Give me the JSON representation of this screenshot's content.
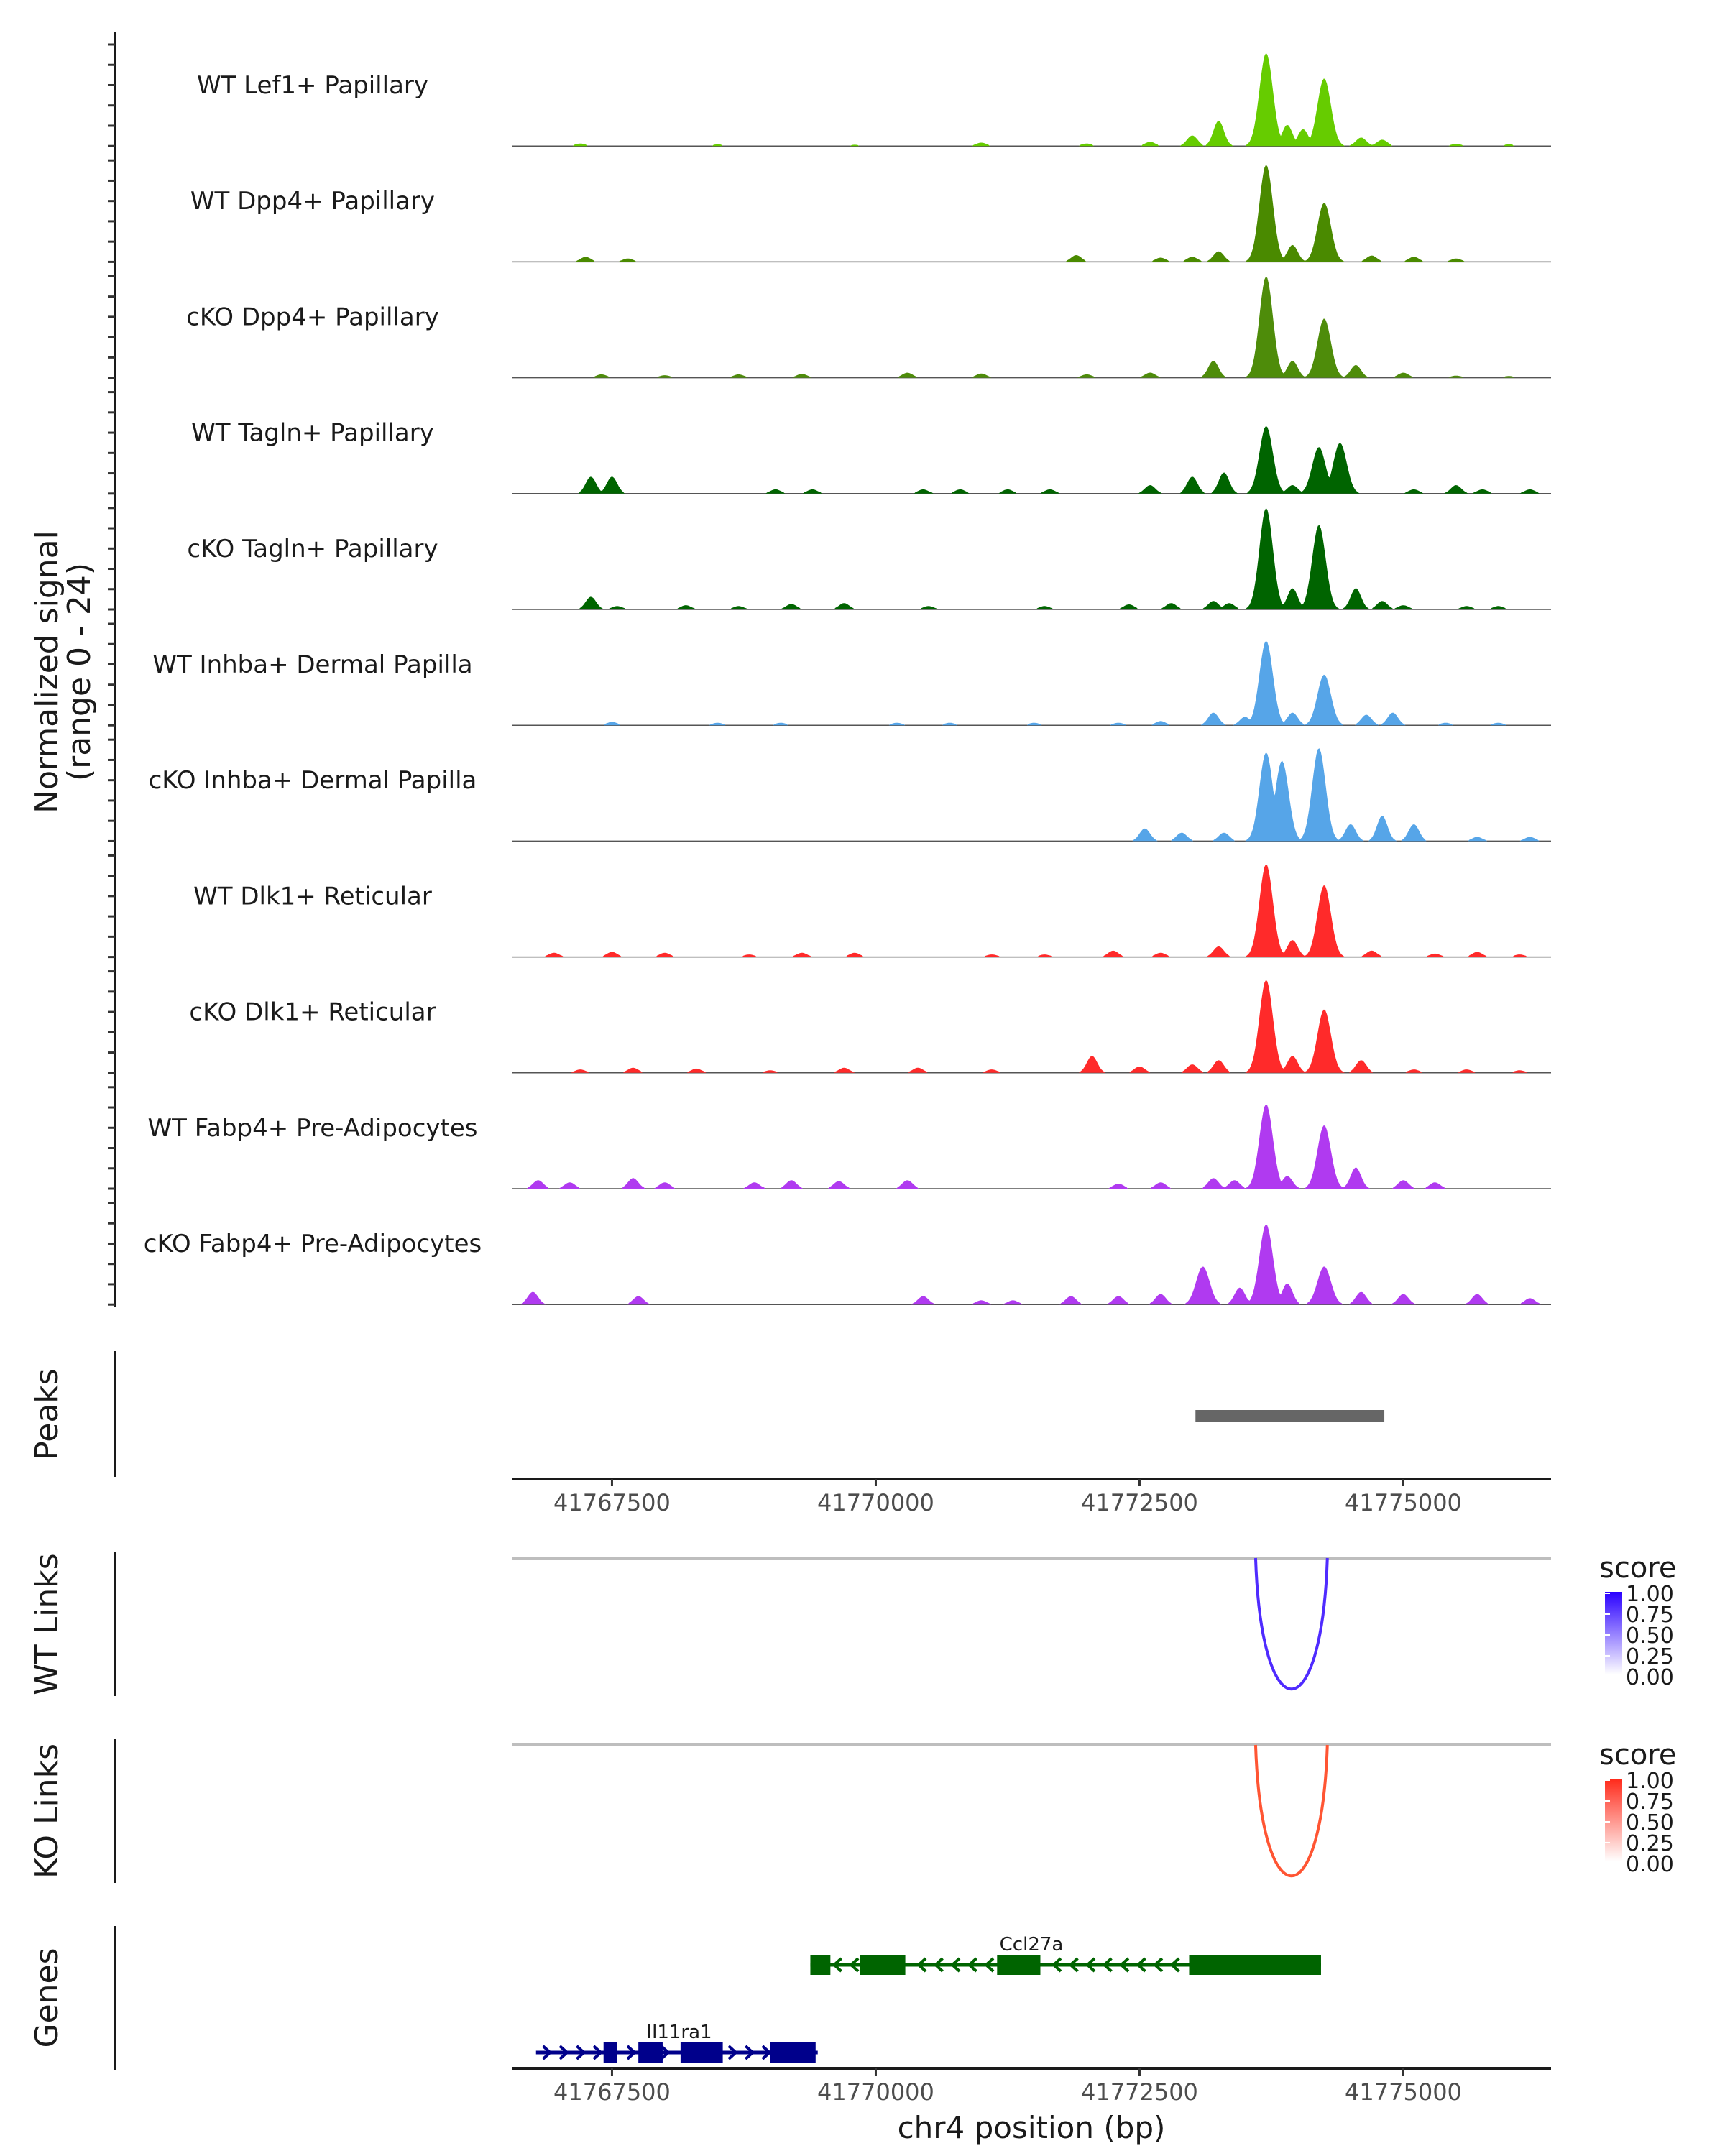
{
  "chart_data": {
    "type": "area",
    "title": "",
    "region": {
      "chrom": "chr4",
      "start": 41766550,
      "end": 41776400
    },
    "xlabel": "chr4 position (bp)",
    "xticks": [
      41767500,
      41770000,
      41772500,
      41775000
    ],
    "coverage": {
      "ylabel": "Normalized signal\n(range 0 - 24)",
      "ylabel_line1": "Normalized signal",
      "ylabel_line2": "(range 0 - 24)",
      "ylim": [
        0,
        24
      ],
      "tracks": [
        {
          "name": "WT Lef1+ Papillary",
          "color": "#66CC00",
          "peaks": [
            [
              41767200,
              0.6
            ],
            [
              41768500,
              0.4
            ],
            [
              41769800,
              0.3
            ],
            [
              41771000,
              0.8
            ],
            [
              41772000,
              0.6
            ],
            [
              41772600,
              1.0
            ],
            [
              41773000,
              2.5
            ],
            [
              41773250,
              6
            ],
            [
              41773700,
              22
            ],
            [
              41773900,
              5
            ],
            [
              41774050,
              4
            ],
            [
              41774250,
              16
            ],
            [
              41774600,
              2
            ],
            [
              41774800,
              1.5
            ],
            [
              41775500,
              0.5
            ],
            [
              41776000,
              0.4
            ]
          ]
        },
        {
          "name": "WT Dpp4+ Papillary",
          "color": "#4A8A00",
          "peaks": [
            [
              41767250,
              1.2
            ],
            [
              41767650,
              0.8
            ],
            [
              41771900,
              1.6
            ],
            [
              41772700,
              1.0
            ],
            [
              41773000,
              1.2
            ],
            [
              41773250,
              2.5
            ],
            [
              41773700,
              23
            ],
            [
              41773950,
              4
            ],
            [
              41774250,
              14
            ],
            [
              41774700,
              1.5
            ],
            [
              41775100,
              1.2
            ],
            [
              41775500,
              0.8
            ]
          ]
        },
        {
          "name": "cKO Dpp4+ Papillary",
          "color": "#4E8C0A",
          "peaks": [
            [
              41767400,
              0.8
            ],
            [
              41768000,
              0.6
            ],
            [
              41768700,
              0.8
            ],
            [
              41769300,
              0.9
            ],
            [
              41770300,
              1.2
            ],
            [
              41771000,
              1.0
            ],
            [
              41772000,
              0.8
            ],
            [
              41772600,
              1.2
            ],
            [
              41773200,
              4
            ],
            [
              41773700,
              24
            ],
            [
              41773950,
              4
            ],
            [
              41774250,
              14
            ],
            [
              41774550,
              3
            ],
            [
              41775000,
              1.2
            ],
            [
              41775500,
              0.5
            ],
            [
              41776000,
              0.4
            ]
          ]
        },
        {
          "name": "WT Tagln+ Papillary",
          "color": "#006400",
          "peaks": [
            [
              41767300,
              4
            ],
            [
              41767500,
              4
            ],
            [
              41769050,
              1
            ],
            [
              41769400,
              1
            ],
            [
              41770450,
              1
            ],
            [
              41770800,
              1
            ],
            [
              41771250,
              1
            ],
            [
              41771650,
              1
            ],
            [
              41772600,
              2
            ],
            [
              41773000,
              4
            ],
            [
              41773300,
              5
            ],
            [
              41773700,
              16
            ],
            [
              41773950,
              2
            ],
            [
              41774200,
              11
            ],
            [
              41774400,
              12
            ],
            [
              41775100,
              1
            ],
            [
              41775500,
              2
            ],
            [
              41775750,
              1
            ],
            [
              41776200,
              1
            ]
          ]
        },
        {
          "name": "cKO Tagln+ Papillary",
          "color": "#006400",
          "peaks": [
            [
              41767300,
              3
            ],
            [
              41767550,
              0.8
            ],
            [
              41768200,
              1
            ],
            [
              41768700,
              0.8
            ],
            [
              41769200,
              1.3
            ],
            [
              41769700,
              1.5
            ],
            [
              41770500,
              0.8
            ],
            [
              41771600,
              0.8
            ],
            [
              41772400,
              1.2
            ],
            [
              41772800,
              1.5
            ],
            [
              41773200,
              2
            ],
            [
              41773350,
              1.5
            ],
            [
              41773700,
              24
            ],
            [
              41773950,
              5
            ],
            [
              41774200,
              20
            ],
            [
              41774550,
              5
            ],
            [
              41774800,
              2
            ],
            [
              41775000,
              1
            ],
            [
              41775600,
              0.8
            ],
            [
              41775900,
              0.8
            ]
          ]
        },
        {
          "name": "WT Inhba+ Dermal Papilla",
          "color": "#56A5E8",
          "peaks": [
            [
              41767500,
              0.8
            ],
            [
              41768500,
              0.6
            ],
            [
              41769100,
              0.6
            ],
            [
              41770200,
              0.6
            ],
            [
              41770700,
              0.6
            ],
            [
              41771500,
              0.6
            ],
            [
              41772300,
              0.6
            ],
            [
              41772700,
              1
            ],
            [
              41773200,
              3
            ],
            [
              41773500,
              2
            ],
            [
              41773700,
              20
            ],
            [
              41773950,
              3
            ],
            [
              41774250,
              12
            ],
            [
              41774650,
              2.5
            ],
            [
              41774900,
              3
            ],
            [
              41775400,
              0.6
            ],
            [
              41775900,
              0.6
            ]
          ]
        },
        {
          "name": "cKO Inhba+ Dermal Papilla",
          "color": "#56A5E8",
          "peaks": [
            [
              41772550,
              3
            ],
            [
              41772900,
              2
            ],
            [
              41773300,
              2
            ],
            [
              41773700,
              21
            ],
            [
              41773850,
              19
            ],
            [
              41774200,
              22
            ],
            [
              41774500,
              4
            ],
            [
              41774800,
              6
            ],
            [
              41775100,
              4
            ],
            [
              41775700,
              1
            ],
            [
              41776200,
              1
            ]
          ]
        },
        {
          "name": "WT Dlk1+ Reticular",
          "color": "#FF2A2A",
          "peaks": [
            [
              41766950,
              1
            ],
            [
              41767500,
              1.2
            ],
            [
              41768000,
              1
            ],
            [
              41768800,
              0.6
            ],
            [
              41769300,
              1
            ],
            [
              41769800,
              1
            ],
            [
              41771100,
              0.6
            ],
            [
              41771600,
              0.6
            ],
            [
              41772250,
              1.5
            ],
            [
              41772700,
              1
            ],
            [
              41773250,
              2.5
            ],
            [
              41773700,
              22
            ],
            [
              41773950,
              4
            ],
            [
              41774250,
              17
            ],
            [
              41774700,
              1.5
            ],
            [
              41775300,
              0.8
            ],
            [
              41775700,
              1.2
            ],
            [
              41776100,
              0.6
            ]
          ]
        },
        {
          "name": "cKO Dlk1+ Reticular",
          "color": "#FF2A2A",
          "peaks": [
            [
              41767200,
              0.8
            ],
            [
              41767700,
              1.2
            ],
            [
              41768300,
              1
            ],
            [
              41769000,
              0.6
            ],
            [
              41769700,
              1.2
            ],
            [
              41770400,
              1.2
            ],
            [
              41771100,
              0.8
            ],
            [
              41772050,
              4
            ],
            [
              41772500,
              1.5
            ],
            [
              41773000,
              2
            ],
            [
              41773250,
              3
            ],
            [
              41773700,
              22
            ],
            [
              41773950,
              4
            ],
            [
              41774250,
              15
            ],
            [
              41774600,
              3
            ],
            [
              41775100,
              0.8
            ],
            [
              41775600,
              0.8
            ],
            [
              41776100,
              0.6
            ]
          ]
        },
        {
          "name": "WT Fabp4+ Pre-Adipocytes",
          "color": "#B03AF0",
          "peaks": [
            [
              41766800,
              2
            ],
            [
              41767100,
              1.5
            ],
            [
              41767700,
              2.5
            ],
            [
              41768000,
              1.5
            ],
            [
              41768850,
              1.5
            ],
            [
              41769200,
              2
            ],
            [
              41769650,
              1.8
            ],
            [
              41770300,
              2
            ],
            [
              41772300,
              1.2
            ],
            [
              41772700,
              1.5
            ],
            [
              41773200,
              2.5
            ],
            [
              41773400,
              2
            ],
            [
              41773700,
              20
            ],
            [
              41773900,
              3
            ],
            [
              41774250,
              15
            ],
            [
              41774550,
              5
            ],
            [
              41775000,
              2
            ],
            [
              41775300,
              1.5
            ]
          ]
        },
        {
          "name": "cKO Fabp4+ Pre-Adipocytes",
          "color": "#B03AF0",
          "peaks": [
            [
              41766750,
              3
            ],
            [
              41767750,
              2
            ],
            [
              41770450,
              2
            ],
            [
              41771000,
              1
            ],
            [
              41771300,
              1
            ],
            [
              41771850,
              2
            ],
            [
              41772300,
              2
            ],
            [
              41772700,
              2.5
            ],
            [
              41773100,
              9
            ],
            [
              41773450,
              4
            ],
            [
              41773700,
              19
            ],
            [
              41773900,
              5
            ],
            [
              41774250,
              9
            ],
            [
              41774600,
              3
            ],
            [
              41775000,
              2.5
            ],
            [
              41775700,
              2.5
            ],
            [
              41776200,
              1.5
            ]
          ]
        }
      ]
    },
    "peaks_track": {
      "label": "Peaks",
      "color": "#666666",
      "ranges": [
        [
          41773030,
          41774820
        ]
      ]
    },
    "links": [
      {
        "label": "WT Links",
        "color": "#4F2BFF",
        "baseline_color": "#BEBEBE",
        "arcs": [
          {
            "start": 41773600,
            "end": 41774280,
            "score": 1.0
          }
        ]
      },
      {
        "label": "KO Links",
        "color": "#FF5533",
        "baseline_color": "#BEBEBE",
        "arcs": [
          {
            "start": 41773600,
            "end": 41774280,
            "score": 1.0
          }
        ]
      }
    ],
    "legends": [
      {
        "title": "score",
        "low_color": "#FFFFFF",
        "high_color": "#2A00FF",
        "ticks": [
          "1.00",
          "0.75",
          "0.50",
          "0.25",
          "0.00"
        ]
      },
      {
        "title": "score",
        "low_color": "#FFFFFF",
        "high_color": "#FF2A1A",
        "ticks": [
          "1.00",
          "0.75",
          "0.50",
          "0.25",
          "0.00"
        ]
      }
    ],
    "genes": {
      "label": "Genes",
      "items": [
        {
          "name": "Ccl27a",
          "strand": "-",
          "color": "#006400",
          "start": 41769380,
          "end": 41774220,
          "exons": [
            [
              41769380,
              41769570
            ],
            [
              41769850,
              41770280
            ],
            [
              41771150,
              41771560
            ],
            [
              41772970,
              41774220
            ]
          ]
        },
        {
          "name": "Il11ra1",
          "strand": "+",
          "color": "#00008B",
          "start": 41766780,
          "end": 41769450,
          "exons": [
            [
              41767420,
              41767550
            ],
            [
              41767750,
              41767980
            ],
            [
              41768150,
              41768550
            ],
            [
              41769000,
              41769430
            ]
          ]
        }
      ]
    }
  }
}
